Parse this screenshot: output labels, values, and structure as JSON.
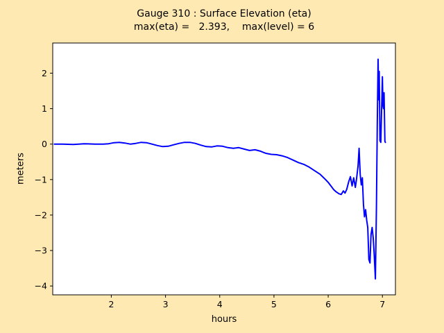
{
  "figure": {
    "background_color": "#ffe9b3",
    "plot_background_color": "#ffffff",
    "frame_color": "#000000"
  },
  "chart_data": {
    "type": "line",
    "title": "Gauge 310 : Surface Elevation (eta)",
    "subtitle": "max(eta) =   2.393,    max(level) = 6",
    "xlabel": "hours",
    "ylabel": "meters",
    "xlim": [
      0.92,
      7.24
    ],
    "ylim": [
      -4.25,
      2.85
    ],
    "grid": false,
    "legend": false,
    "line_color": "#0000ff",
    "line_width": 2,
    "xticks": [
      {
        "v": 2,
        "label": "2"
      },
      {
        "v": 3,
        "label": "3"
      },
      {
        "v": 4,
        "label": "4"
      },
      {
        "v": 5,
        "label": "5"
      },
      {
        "v": 6,
        "label": "6"
      },
      {
        "v": 7,
        "label": "7"
      }
    ],
    "yticks": [
      {
        "v": -4,
        "label": "−4"
      },
      {
        "v": -3,
        "label": "−3"
      },
      {
        "v": -2,
        "label": "−2"
      },
      {
        "v": -1,
        "label": "−1"
      },
      {
        "v": 0,
        "label": "0"
      },
      {
        "v": 1,
        "label": "1"
      },
      {
        "v": 2,
        "label": "2"
      }
    ],
    "series": [
      {
        "name": "eta",
        "max_value": 2.393,
        "points": [
          [
            0.95,
            0.0
          ],
          [
            1.1,
            0.0
          ],
          [
            1.3,
            -0.01
          ],
          [
            1.5,
            0.01
          ],
          [
            1.7,
            0.0
          ],
          [
            1.85,
            0.0
          ],
          [
            1.95,
            0.01
          ],
          [
            2.05,
            0.04
          ],
          [
            2.15,
            0.05
          ],
          [
            2.25,
            0.03
          ],
          [
            2.35,
            0.0
          ],
          [
            2.45,
            0.02
          ],
          [
            2.55,
            0.05
          ],
          [
            2.65,
            0.04
          ],
          [
            2.75,
            0.0
          ],
          [
            2.85,
            -0.04
          ],
          [
            2.95,
            -0.07
          ],
          [
            3.05,
            -0.06
          ],
          [
            3.15,
            -0.02
          ],
          [
            3.25,
            0.02
          ],
          [
            3.35,
            0.05
          ],
          [
            3.45,
            0.05
          ],
          [
            3.55,
            0.02
          ],
          [
            3.65,
            -0.03
          ],
          [
            3.75,
            -0.07
          ],
          [
            3.85,
            -0.08
          ],
          [
            3.95,
            -0.05
          ],
          [
            4.05,
            -0.06
          ],
          [
            4.15,
            -0.1
          ],
          [
            4.25,
            -0.12
          ],
          [
            4.35,
            -0.1
          ],
          [
            4.45,
            -0.14
          ],
          [
            4.55,
            -0.18
          ],
          [
            4.65,
            -0.16
          ],
          [
            4.75,
            -0.2
          ],
          [
            4.85,
            -0.26
          ],
          [
            4.95,
            -0.29
          ],
          [
            5.05,
            -0.3
          ],
          [
            5.15,
            -0.33
          ],
          [
            5.25,
            -0.38
          ],
          [
            5.35,
            -0.45
          ],
          [
            5.45,
            -0.52
          ],
          [
            5.55,
            -0.57
          ],
          [
            5.65,
            -0.65
          ],
          [
            5.75,
            -0.75
          ],
          [
            5.85,
            -0.85
          ],
          [
            5.95,
            -1.0
          ],
          [
            6.0,
            -1.08
          ],
          [
            6.05,
            -1.18
          ],
          [
            6.1,
            -1.28
          ],
          [
            6.15,
            -1.35
          ],
          [
            6.2,
            -1.4
          ],
          [
            6.24,
            -1.42
          ],
          [
            6.28,
            -1.32
          ],
          [
            6.31,
            -1.38
          ],
          [
            6.34,
            -1.28
          ],
          [
            6.38,
            -1.05
          ],
          [
            6.41,
            -0.92
          ],
          [
            6.44,
            -1.18
          ],
          [
            6.47,
            -0.95
          ],
          [
            6.5,
            -1.22
          ],
          [
            6.52,
            -1.02
          ],
          [
            6.55,
            -0.62
          ],
          [
            6.57,
            -0.12
          ],
          [
            6.59,
            -0.85
          ],
          [
            6.61,
            -1.15
          ],
          [
            6.63,
            -0.95
          ],
          [
            6.65,
            -1.7
          ],
          [
            6.67,
            -2.05
          ],
          [
            6.69,
            -1.85
          ],
          [
            6.71,
            -2.15
          ],
          [
            6.73,
            -2.35
          ],
          [
            6.75,
            -3.25
          ],
          [
            6.77,
            -3.35
          ],
          [
            6.79,
            -2.55
          ],
          [
            6.81,
            -2.35
          ],
          [
            6.83,
            -2.65
          ],
          [
            6.85,
            -3.15
          ],
          [
            6.87,
            -3.8
          ],
          [
            6.89,
            -1.8
          ],
          [
            6.905,
            0.5
          ],
          [
            6.92,
            2.393
          ],
          [
            6.93,
            1.25
          ],
          [
            6.94,
            2.05
          ],
          [
            6.955,
            0.1
          ],
          [
            6.97,
            0.05
          ],
          [
            6.985,
            1.0
          ],
          [
            7.0,
            1.9
          ],
          [
            7.01,
            1.1
          ],
          [
            7.02,
            1.0
          ],
          [
            7.03,
            1.45
          ],
          [
            7.045,
            0.08
          ],
          [
            7.055,
            0.05
          ]
        ]
      }
    ]
  }
}
